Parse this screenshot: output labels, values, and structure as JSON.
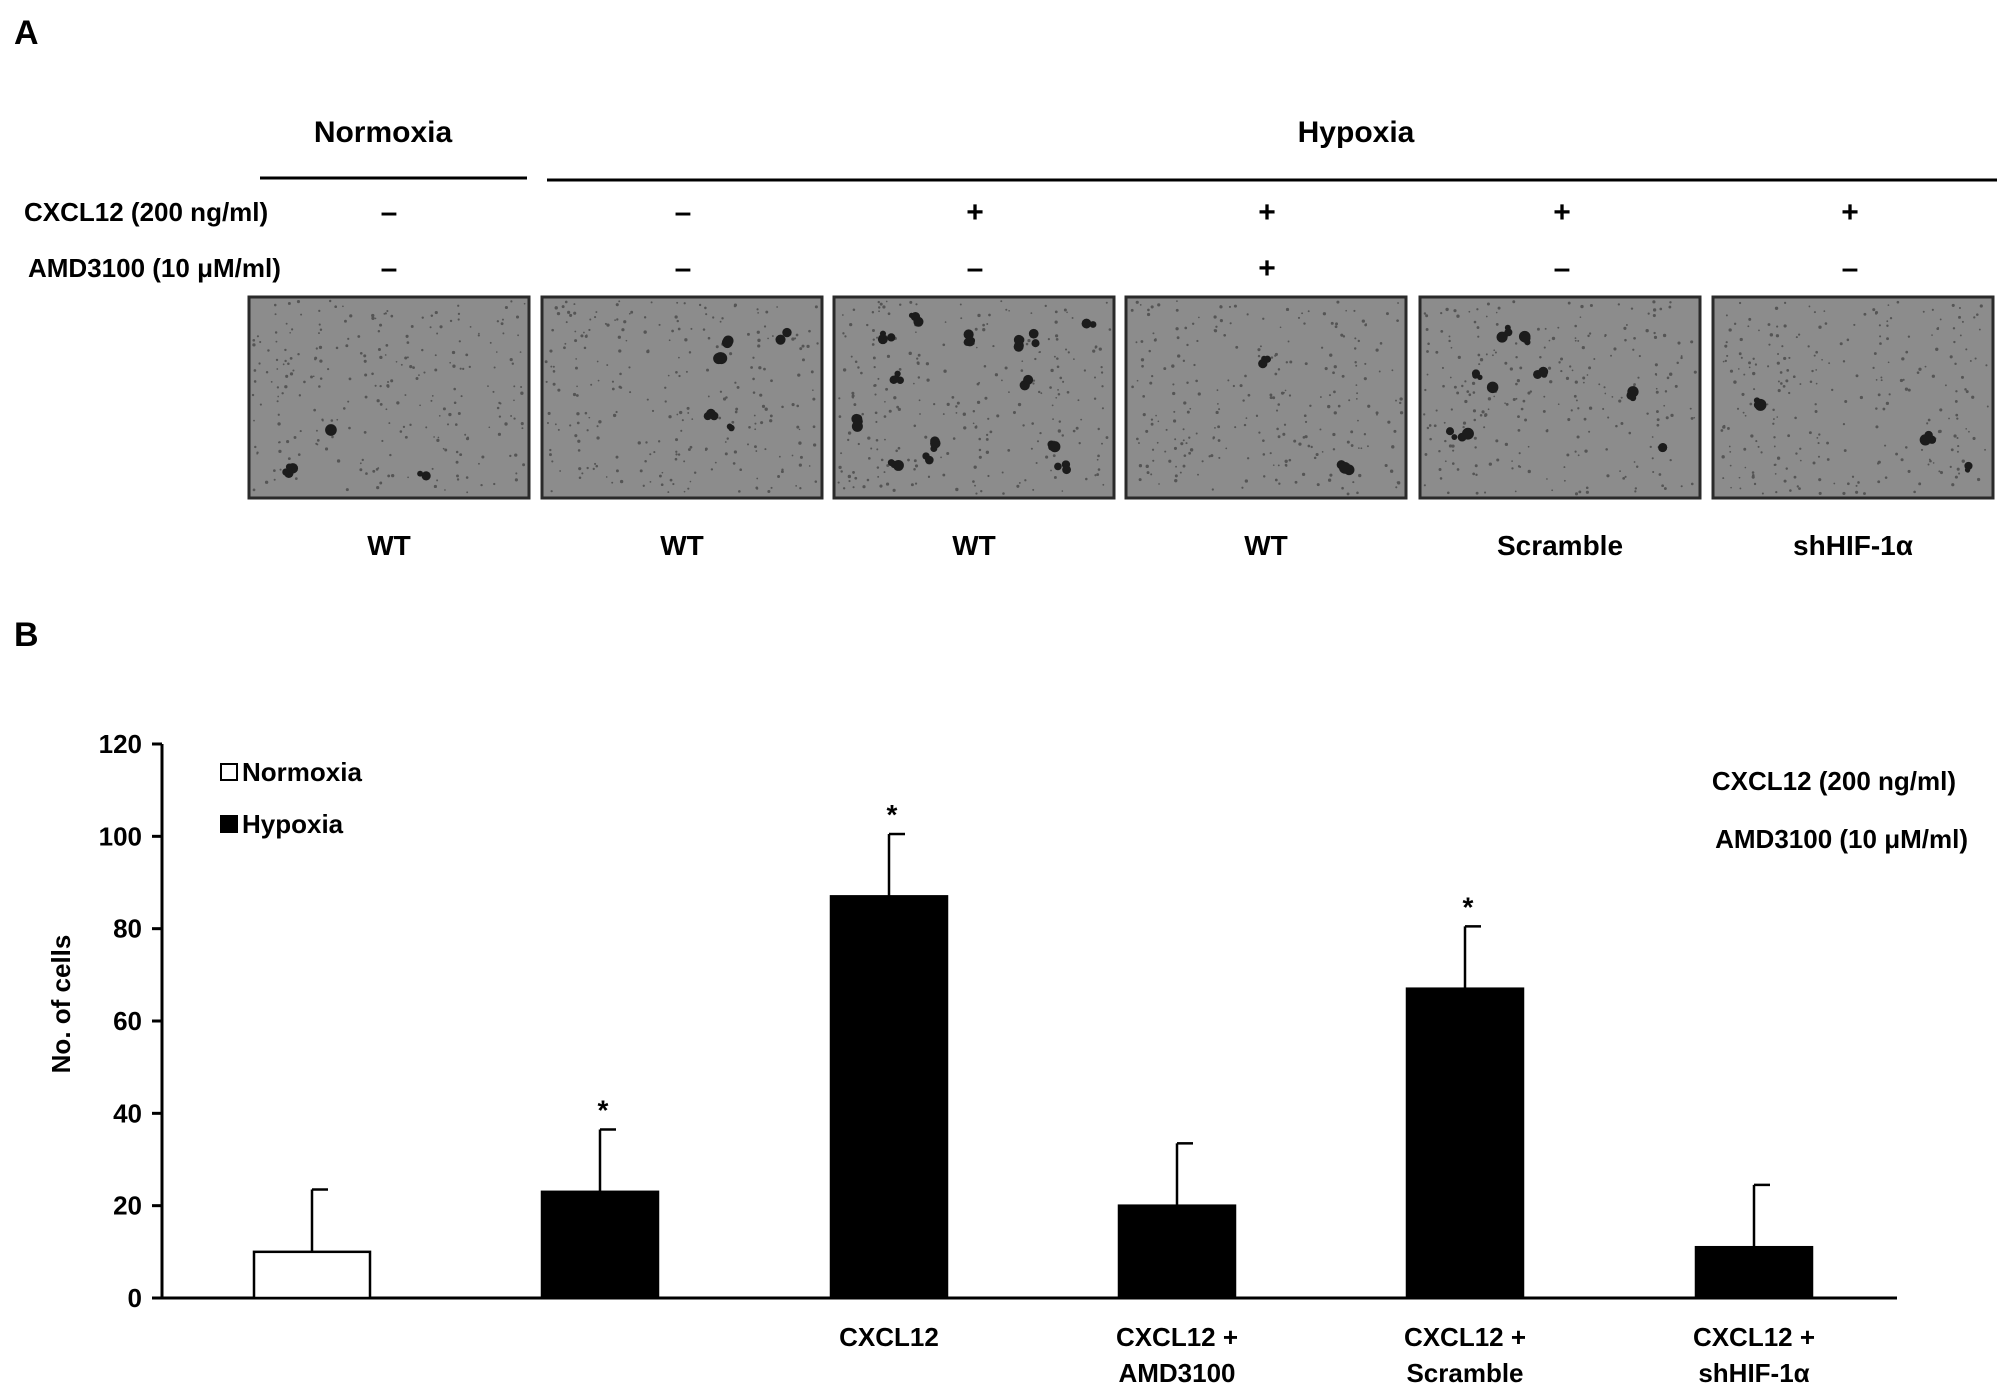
{
  "panel_a": {
    "label": "A",
    "conditions": {
      "normoxia": "Normoxia",
      "hypoxia": "Hypoxia"
    },
    "rows": [
      {
        "label": "CXCL12 (200 ng/ml)",
        "signs": [
          "–",
          "–",
          "+",
          "+",
          "+",
          "+"
        ]
      },
      {
        "label": "AMD3100 (10 μM/ml)",
        "signs": [
          "–",
          "–",
          "–",
          "+",
          "–",
          "–"
        ]
      }
    ],
    "image_labels": [
      "WT",
      "WT",
      "WT",
      "WT",
      "Scramble",
      "shHIF-1α"
    ],
    "image_colors": {
      "background": "#8c8c8c",
      "cells": "#1c1c1c",
      "border": "#2a2a2a"
    }
  },
  "panel_b": {
    "label": "B",
    "legend": {
      "normoxia": "Normoxia",
      "hypoxia": "Hypoxia"
    },
    "conditions_note": [
      "CXCL12 (200 ng/ml)",
      "AMD3100 (10 μM/ml)"
    ],
    "colors": {
      "normoxia": "#ffffff",
      "hypoxia": "#000000"
    }
  },
  "chart_data": {
    "type": "bar",
    "title": "",
    "xlabel": "",
    "ylabel": "No. of cells",
    "ylim": [
      0,
      120
    ],
    "yticks": [
      0,
      20,
      40,
      60,
      80,
      100,
      120
    ],
    "categories": [
      [
        ""
      ],
      [
        ""
      ],
      [
        "CXCL12"
      ],
      [
        "CXCL12 +",
        "AMD3100"
      ],
      [
        "CXCL12 +",
        "Scramble"
      ],
      [
        "CXCL12 +",
        "shHIF-1α"
      ]
    ],
    "series": [
      {
        "name": "Normoxia",
        "values": [
          10,
          null,
          null,
          null,
          null,
          null
        ],
        "errors": [
          13.5,
          null,
          null,
          null,
          null,
          null
        ]
      },
      {
        "name": "Hypoxia",
        "values": [
          null,
          23,
          87,
          20,
          67,
          11
        ],
        "errors": [
          null,
          13.5,
          13.5,
          13.5,
          13.5,
          13.5
        ]
      }
    ],
    "significance": [
      "",
      "*",
      "*",
      "",
      "*",
      ""
    ],
    "legend_position": "top-left",
    "grid": false
  }
}
